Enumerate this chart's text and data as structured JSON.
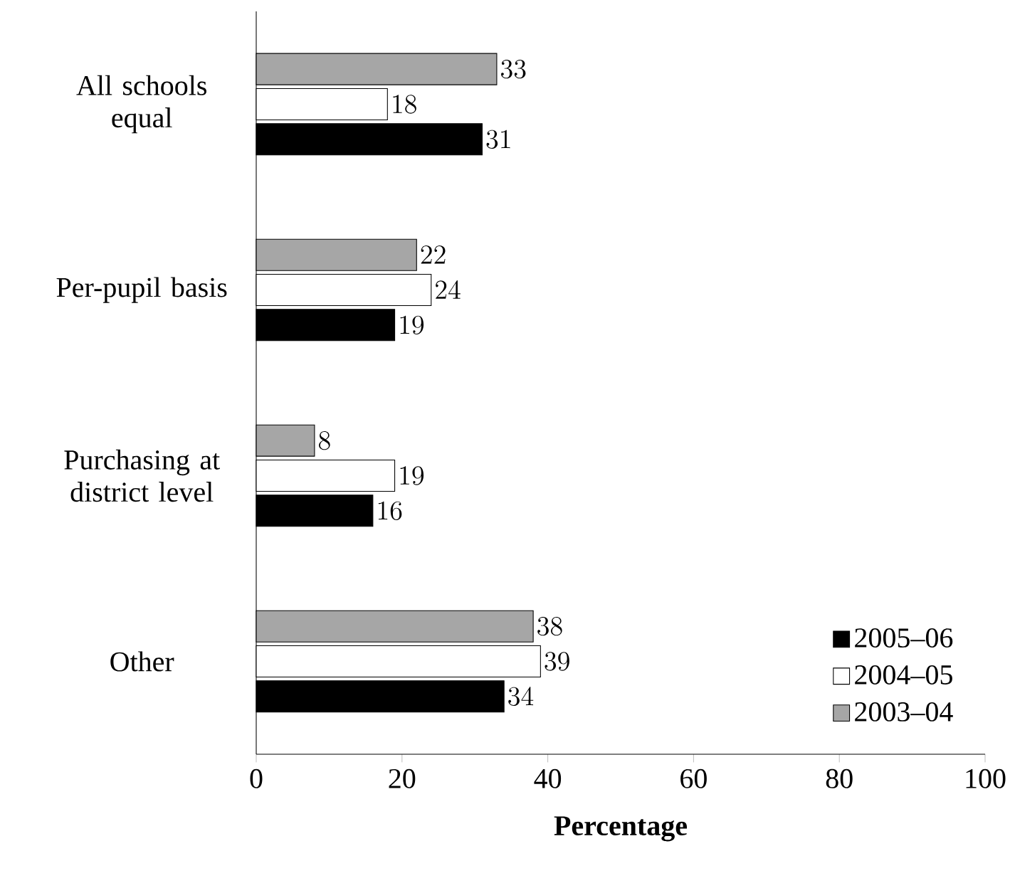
{
  "chart_data": {
    "type": "bar",
    "orientation": "horizontal",
    "xlabel": "**Percentage**",
    "categories": [
      "All schools equal",
      "Per-pupil basis",
      "Purchasing at district level",
      "Other"
    ],
    "series": [
      {
        "name": "2005–06",
        "color": "#000000",
        "values": [
          31,
          19,
          16,
          34
        ]
      },
      {
        "name": "2004–05",
        "color": "#ffffff",
        "values": [
          18,
          24,
          19,
          39
        ]
      },
      {
        "name": "2003–04",
        "color": "#a6a6a6",
        "values": [
          33,
          22,
          8,
          38
        ]
      }
    ],
    "xlim": [
      0,
      100
    ],
    "xticks": [
      0,
      20,
      40,
      60,
      80,
      100
    ],
    "data_labels": true,
    "legend": "bottom right",
    "grid": false
  }
}
